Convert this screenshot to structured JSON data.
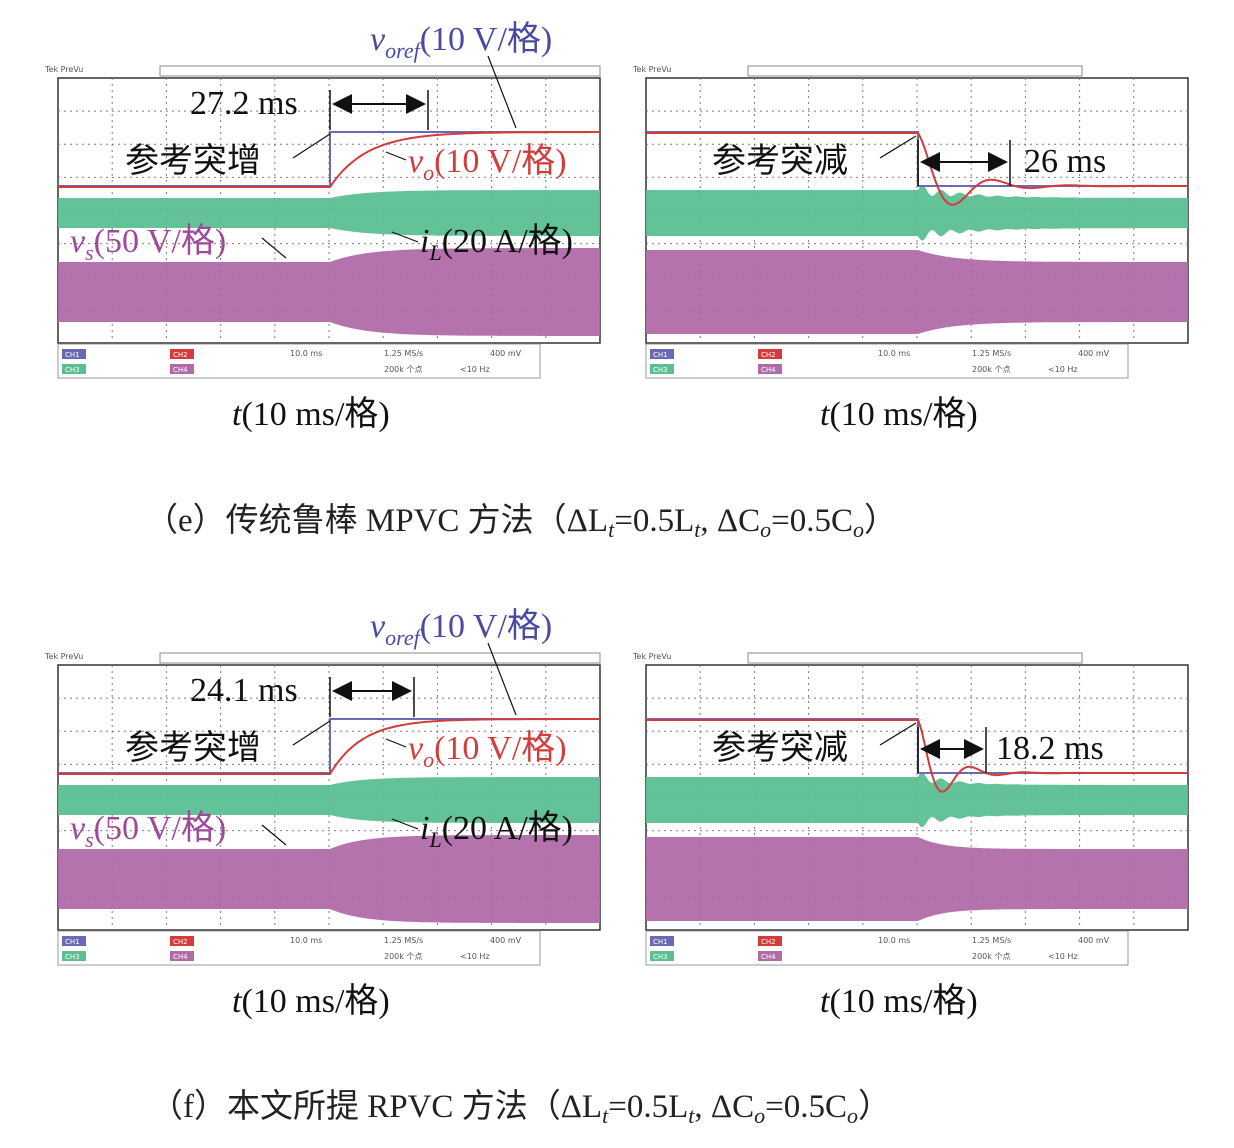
{
  "colors": {
    "ref": "#6a6ab4",
    "vo": "#d43c3c",
    "il": "#5cbf94",
    "vs": "#b06ca8",
    "grid": "#7a7a7a"
  },
  "labels": {
    "voref": "v",
    "voref_sub": "oref",
    "voref_scale": "(10 V/格)",
    "vo": "v",
    "vo_sub": "o",
    "vo_scale": "(10 V/格)",
    "vs": "v",
    "vs_sub": "s",
    "vs_scale": "(50 V/格)",
    "il": "i",
    "il_sub": "L",
    "il_scale": "(20 A/格)",
    "ref_increase": "参考突增",
    "ref_decrease": "参考突减",
    "xaxis_italic": "t",
    "xaxis_rest": "(10 ms/格)"
  },
  "scope_header": "Tek PreVu",
  "scope_status": {
    "ch1": "CH1",
    "ch2": "CH2",
    "ch3": "CH3",
    "ch4": "CH4",
    "timebase": "10.0 ms",
    "rate": "1.25 MS/s",
    "points": "200k 个点",
    "freq": "<10 Hz",
    "trig": "400 mV"
  },
  "rows": [
    {
      "caption": {
        "a": "（e）传统鲁棒 MPVC 方法（ΔL",
        "b": "=0.5L",
        "c": ", ΔC",
        "d": "=0.5C",
        "e": "）"
      },
      "left": {
        "time_label": "27.2 ms"
      },
      "right": {
        "time_label": "26 ms"
      }
    },
    {
      "caption": {
        "a": "（f）本文所提 RPVC 方法（ΔL",
        "b": "=0.5L",
        "c": ", ΔC",
        "d": "=0.5C",
        "e": "）"
      },
      "left": {
        "time_label": "24.1 ms"
      },
      "right": {
        "time_label": "18.2 ms"
      }
    }
  ],
  "chart_data": [
    {
      "type": "line",
      "title": "传统鲁棒 MPVC 方法 — 参考突增",
      "xlabel": "t(10 ms/格)",
      "event": "参考突增",
      "settling_time_ms": 27.2,
      "series": [
        {
          "name": "v_oref",
          "scale": "10 V/格",
          "behavior": "step up"
        },
        {
          "name": "v_o",
          "scale": "10 V/格",
          "behavior": "first-order rise"
        },
        {
          "name": "i_L",
          "scale": "20 A/格",
          "behavior": "envelope widens"
        },
        {
          "name": "v_s",
          "scale": "50 V/格",
          "behavior": "envelope widens"
        }
      ]
    },
    {
      "type": "line",
      "title": "传统鲁棒 MPVC 方法 — 参考突减",
      "xlabel": "t(10 ms/格)",
      "event": "参考突减",
      "settling_time_ms": 26,
      "series": [
        {
          "name": "v_oref",
          "scale": "10 V/格",
          "behavior": "step down"
        },
        {
          "name": "v_o",
          "scale": "10 V/格",
          "behavior": "oscillatory fall"
        },
        {
          "name": "i_L",
          "scale": "20 A/格",
          "behavior": "envelope narrows with ringing"
        },
        {
          "name": "v_s",
          "scale": "50 V/格",
          "behavior": "envelope narrows"
        }
      ]
    },
    {
      "type": "line",
      "title": "本文所提 RPVC 方法 — 参考突增",
      "xlabel": "t(10 ms/格)",
      "event": "参考突增",
      "settling_time_ms": 24.1,
      "series": [
        {
          "name": "v_oref",
          "scale": "10 V/格",
          "behavior": "step up"
        },
        {
          "name": "v_o",
          "scale": "10 V/格",
          "behavior": "first-order rise"
        },
        {
          "name": "i_L",
          "scale": "20 A/格",
          "behavior": "envelope widens"
        },
        {
          "name": "v_s",
          "scale": "50 V/格",
          "behavior": "envelope widens"
        }
      ]
    },
    {
      "type": "line",
      "title": "本文所提 RPVC 方法 — 参考突减",
      "xlabel": "t(10 ms/格)",
      "event": "参考突减",
      "settling_time_ms": 18.2,
      "series": [
        {
          "name": "v_oref",
          "scale": "10 V/格",
          "behavior": "step down"
        },
        {
          "name": "v_o",
          "scale": "10 V/格",
          "behavior": "oscillatory fall"
        },
        {
          "name": "i_L",
          "scale": "20 A/格",
          "behavior": "envelope narrows with ringing"
        },
        {
          "name": "v_s",
          "scale": "50 V/格",
          "behavior": "envelope narrows"
        }
      ]
    }
  ]
}
